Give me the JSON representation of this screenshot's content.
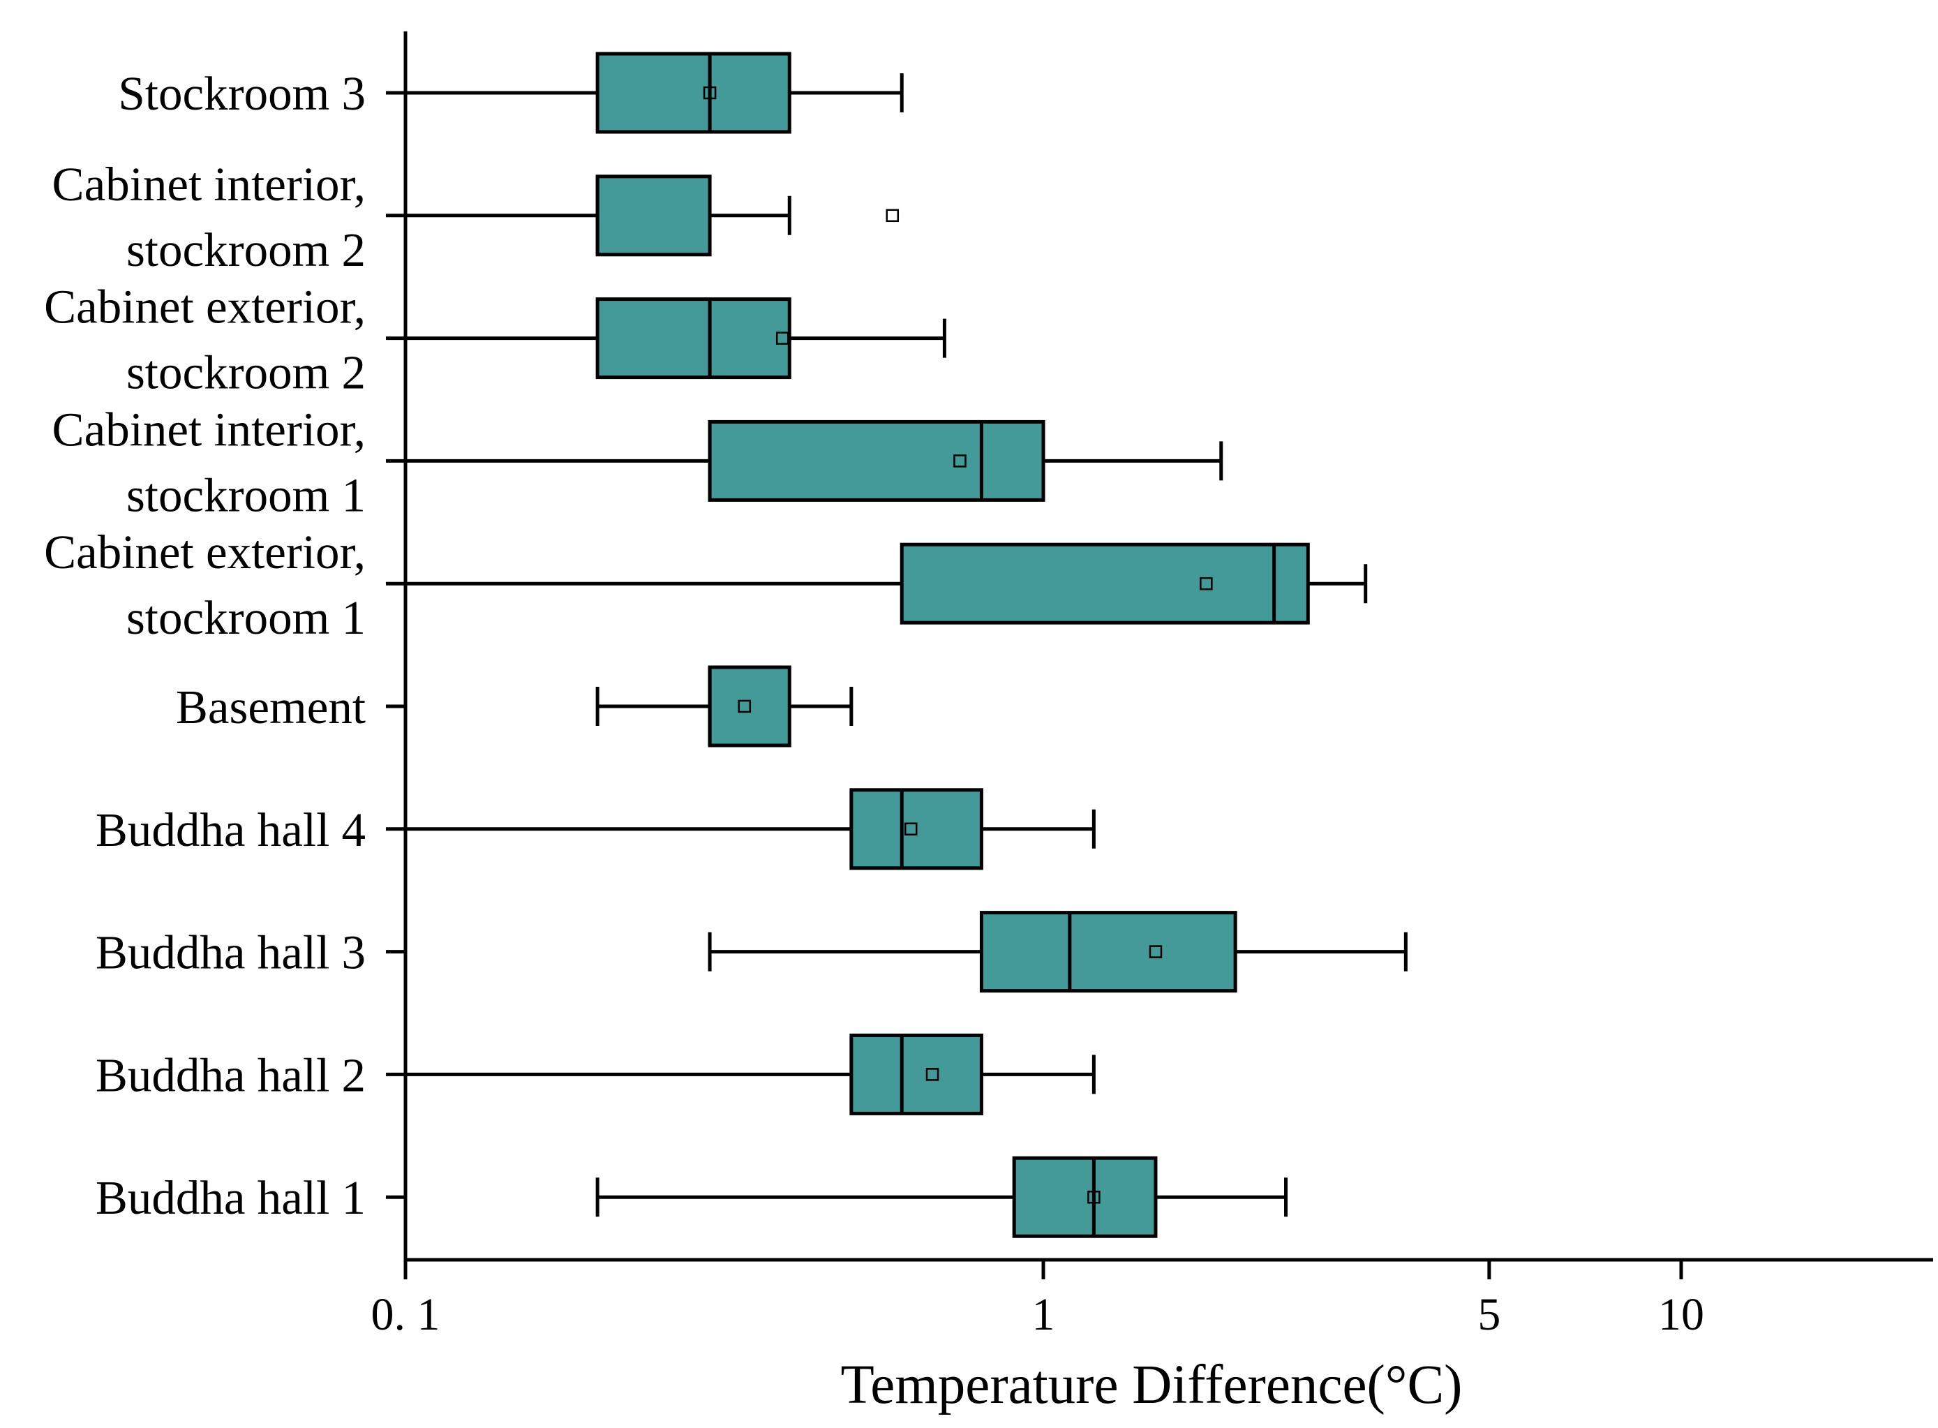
{
  "chart_data": {
    "type": "boxplot",
    "orientation": "horizontal",
    "xscale": "log",
    "xlabel": "Temperature Difference(°C)",
    "ylabel": "",
    "xlim": [
      0.1,
      22
    ],
    "x_ticks": [
      {
        "value": 0.1,
        "label": "0. 1"
      },
      {
        "value": 1,
        "label": "1"
      },
      {
        "value": 5,
        "label": "5"
      },
      {
        "value": 10,
        "label": "10"
      }
    ],
    "box_color": "#439a98",
    "categories": [
      {
        "lines": [
          "Stockroom 3"
        ],
        "whisker_low": 0.1,
        "q1": 0.2,
        "median": 0.3,
        "q3": 0.4,
        "whisker_high": 0.6,
        "mean": 0.3
      },
      {
        "lines": [
          "Cabinet interior,",
          "stockroom 2"
        ],
        "whisker_low": 0.1,
        "q1": 0.2,
        "median": 0.2,
        "q3": 0.3,
        "whisker_high": 0.4,
        "mean": 0.58
      },
      {
        "lines": [
          "Cabinet exterior,",
          "stockroom 2"
        ],
        "whisker_low": 0.1,
        "q1": 0.2,
        "median": 0.3,
        "q3": 0.4,
        "whisker_high": 0.7,
        "mean": 0.39
      },
      {
        "lines": [
          "Cabinet interior,",
          "stockroom 1"
        ],
        "whisker_low": 0.1,
        "q1": 0.3,
        "median": 0.8,
        "q3": 1.0,
        "whisker_high": 1.9,
        "mean": 0.74
      },
      {
        "lines": [
          "Cabinet exterior,",
          "stockroom 1"
        ],
        "whisker_low": 0.1,
        "q1": 0.6,
        "median": 2.3,
        "q3": 2.6,
        "whisker_high": 3.2,
        "mean": 1.8
      },
      {
        "lines": [
          "Basement"
        ],
        "whisker_low": 0.2,
        "q1": 0.3,
        "median": 0.3,
        "q3": 0.4,
        "whisker_high": 0.5,
        "mean": 0.34
      },
      {
        "lines": [
          "Buddha hall 4"
        ],
        "whisker_low": 0.1,
        "q1": 0.5,
        "median": 0.6,
        "q3": 0.8,
        "whisker_high": 1.2,
        "mean": 0.62
      },
      {
        "lines": [
          "Buddha hall 3"
        ],
        "whisker_low": 0.3,
        "q1": 0.8,
        "median": 1.1,
        "q3": 2.0,
        "whisker_high": 3.7,
        "mean": 1.5
      },
      {
        "lines": [
          "Buddha hall 2"
        ],
        "whisker_low": 0.1,
        "q1": 0.5,
        "median": 0.6,
        "q3": 0.8,
        "whisker_high": 1.2,
        "mean": 0.67
      },
      {
        "lines": [
          "Buddha hall 1"
        ],
        "whisker_low": 0.2,
        "q1": 0.9,
        "median": 1.2,
        "q3": 1.5,
        "whisker_high": 2.4,
        "mean": 1.2
      }
    ]
  }
}
